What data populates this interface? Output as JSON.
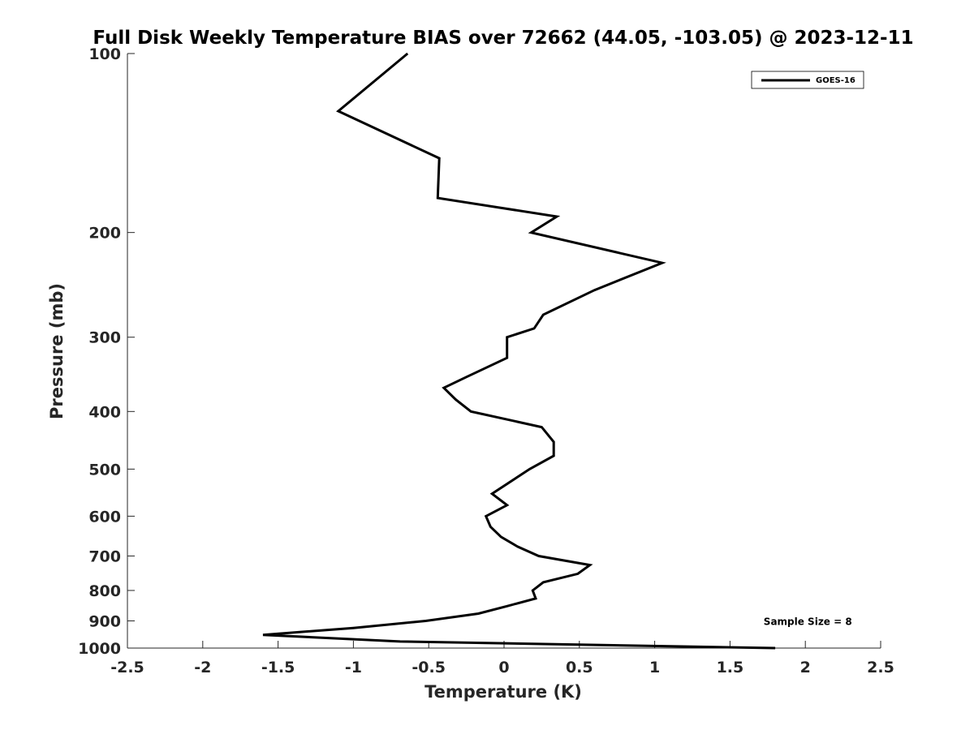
{
  "chart_data": {
    "type": "line",
    "title": "Full Disk Weekly Temperature BIAS over 72662 (44.05, -103.05) @ 2023-12-11",
    "xlabel": "Temperature (K)",
    "ylabel": "Pressure (mb)",
    "xlim": [
      -2.5,
      2.5
    ],
    "ylim": [
      1000,
      100
    ],
    "y_scale": "log",
    "y_direction": "reversed",
    "x_ticks": [
      "-2.5",
      "-2",
      "-1.5",
      "-1",
      "-0.5",
      "0",
      "0.5",
      "1",
      "1.5",
      "2",
      "2.5"
    ],
    "y_ticks": [
      "100",
      "200",
      "300",
      "400",
      "500",
      "600",
      "700",
      "800",
      "900",
      "1000"
    ],
    "grid": false,
    "legend_position": "top-right",
    "series": [
      {
        "name": "GOES-16",
        "color": "#000000",
        "x": [
          -0.64,
          -1.1,
          -0.43,
          -0.44,
          0.35,
          0.18,
          1.05,
          0.6,
          0.26,
          0.2,
          0.02,
          0.02,
          -0.25,
          -0.4,
          -0.32,
          -0.22,
          0.25,
          0.33,
          0.33,
          0.17,
          -0.08,
          0.02,
          -0.12,
          -0.09,
          -0.02,
          0.09,
          0.23,
          0.57,
          0.49,
          0.26,
          0.19,
          0.21,
          0.02,
          -0.17,
          -0.52,
          -1.0,
          -1.6,
          -0.69,
          1.8
        ],
        "y": [
          100,
          125,
          150,
          175,
          188,
          200,
          225,
          250,
          275,
          290,
          300,
          325,
          350,
          365,
          382,
          400,
          425,
          450,
          475,
          500,
          550,
          575,
          600,
          625,
          650,
          675,
          700,
          725,
          750,
          775,
          800,
          825,
          850,
          875,
          900,
          925,
          950,
          975,
          1000
        ]
      }
    ],
    "annotations": [
      {
        "text": "Sample Size = 8",
        "x": 1.75,
        "y": 900
      }
    ]
  }
}
